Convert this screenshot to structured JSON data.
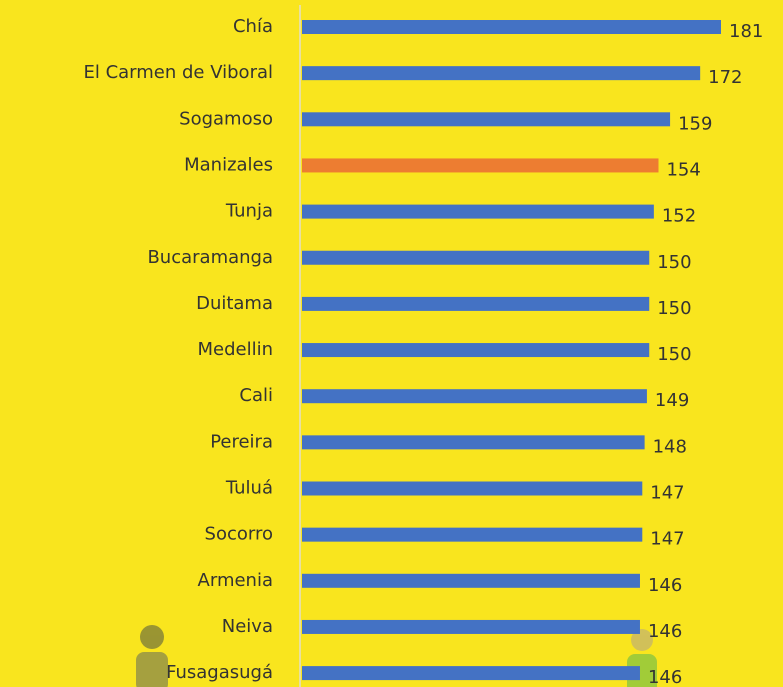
{
  "chart_data": {
    "type": "barh",
    "categories": [
      "Chía",
      "El Carmen de Viboral",
      "Sogamoso",
      "Manizales",
      "Tunja",
      "Bucaramanga",
      "Duitama",
      "Medellin",
      "Cali",
      "Pereira",
      "Tuluá",
      "Socorro",
      "Armenia",
      "Neiva",
      "Fusagasugá"
    ],
    "values": [
      181,
      172,
      159,
      154,
      152,
      150,
      150,
      150,
      149,
      148,
      147,
      147,
      146,
      146,
      146
    ],
    "colors": [
      "#4472c4",
      "#4472c4",
      "#4472c4",
      "#ed7d31",
      "#4472c4",
      "#4472c4",
      "#4472c4",
      "#4472c4",
      "#4472c4",
      "#4472c4",
      "#4472c4",
      "#4472c4",
      "#4472c4",
      "#4472c4",
      "#4472c4"
    ]
  }
}
